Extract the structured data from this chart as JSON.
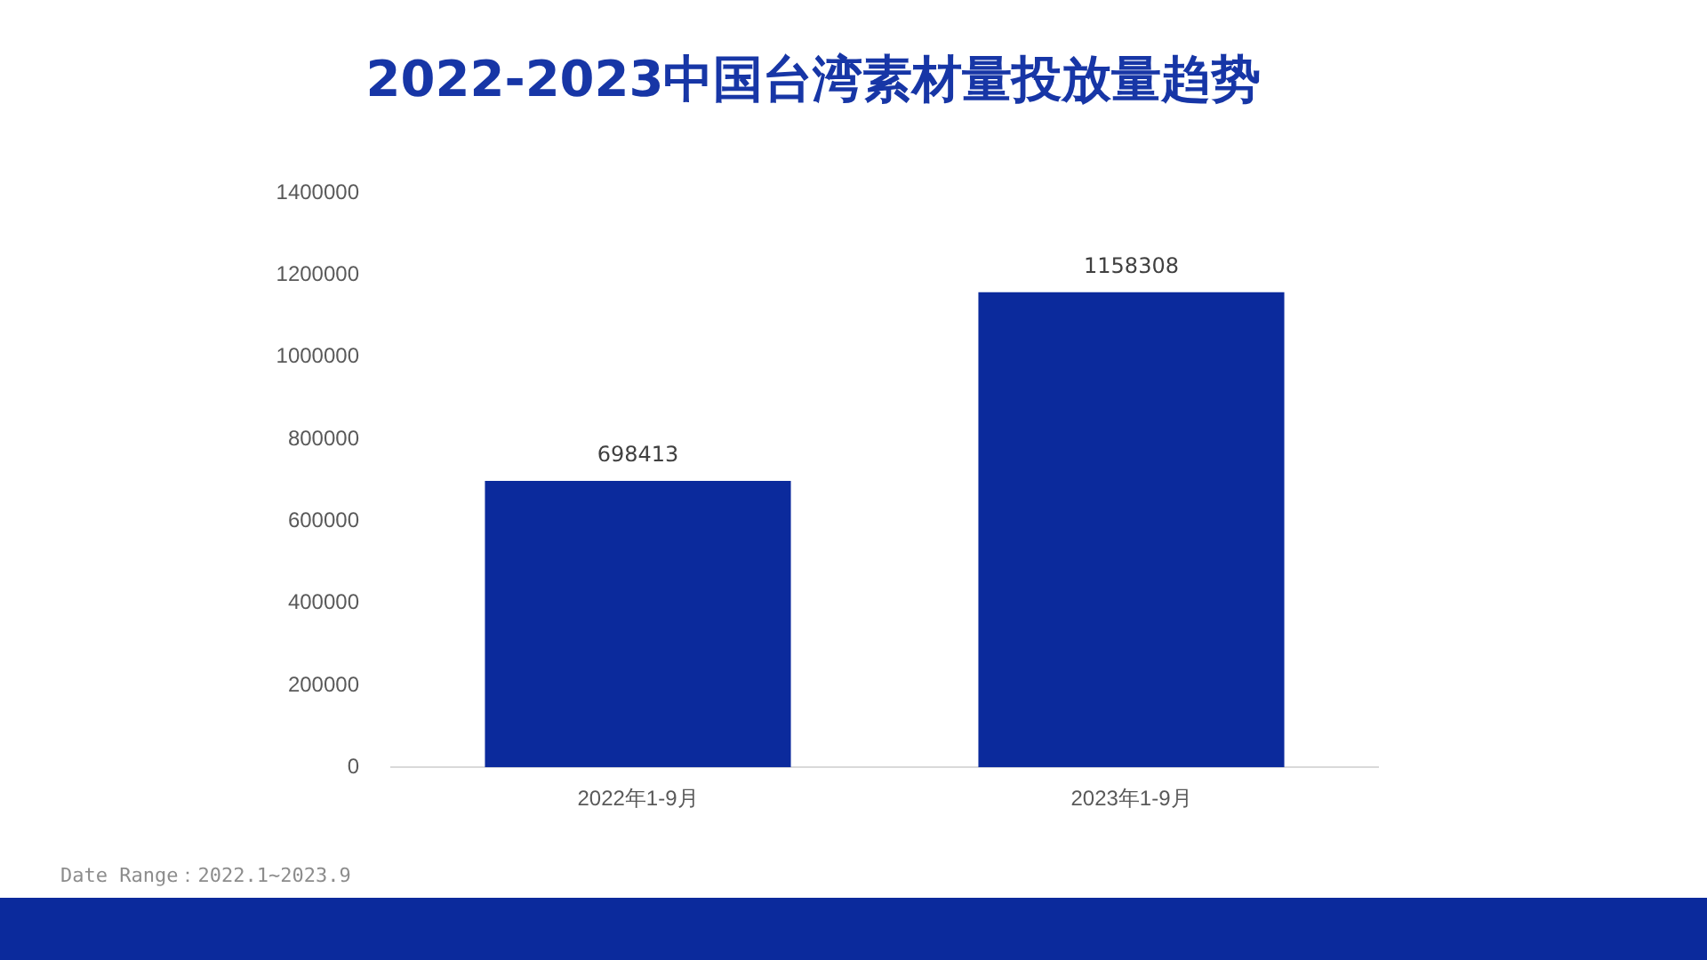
{
  "chart_data": {
    "type": "bar",
    "title": "2022-2023中国台湾素材量投放量趋势",
    "categories": [
      "2022年1-9月",
      "2023年1-9月"
    ],
    "values": [
      698413,
      1158308
    ],
    "color": "#0b2a9c",
    "ylim": [
      0,
      1400000
    ],
    "yticks": [
      0,
      200000,
      400000,
      600000,
      800000,
      1000000,
      1200000,
      1400000
    ],
    "data_labels": true,
    "annotations": [
      "Date Range：2022.1~2023.9"
    ]
  }
}
